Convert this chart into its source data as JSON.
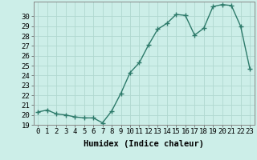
{
  "xlabel": "Humidex (Indice chaleur)",
  "x": [
    0,
    1,
    2,
    3,
    4,
    5,
    6,
    7,
    8,
    9,
    10,
    11,
    12,
    13,
    14,
    15,
    16,
    17,
    18,
    19,
    20,
    21,
    22,
    23
  ],
  "y": [
    20.3,
    20.5,
    20.1,
    20.0,
    19.8,
    19.7,
    19.7,
    19.2,
    20.4,
    22.2,
    24.3,
    25.3,
    27.1,
    28.7,
    29.3,
    30.2,
    30.1,
    28.1,
    28.8,
    31.0,
    31.2,
    31.1,
    29.0,
    24.7
  ],
  "line_color": "#2d7a6a",
  "marker": "+",
  "marker_size": 4,
  "bg_color": "#cceee8",
  "grid_color": "#b0d8d0",
  "ylim_min": 19,
  "ylim_max": 31.5,
  "yticks": [
    19,
    20,
    21,
    22,
    23,
    24,
    25,
    26,
    27,
    28,
    29,
    30
  ],
  "xticks": [
    0,
    1,
    2,
    3,
    4,
    5,
    6,
    7,
    8,
    9,
    10,
    11,
    12,
    13,
    14,
    15,
    16,
    17,
    18,
    19,
    20,
    21,
    22,
    23
  ],
  "tick_label_fontsize": 6.5,
  "xlabel_fontsize": 7.5,
  "line_width": 1.0,
  "marker_edge_width": 1.0
}
